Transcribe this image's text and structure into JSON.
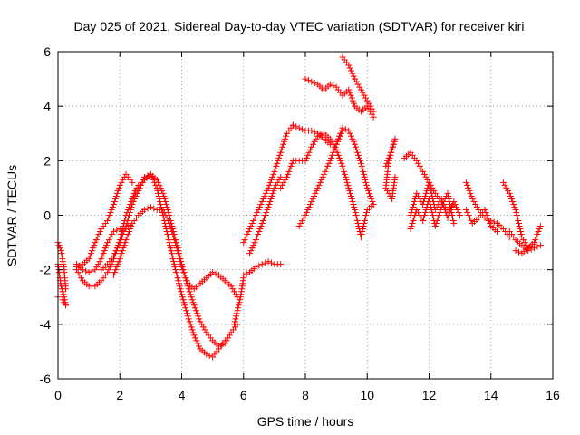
{
  "chart_data": {
    "type": "scatter",
    "title": "Day 025 of 2021, Sidereal Day-to-day VTEC variation (SDTVAR) for receiver kiri",
    "xlabel": "GPS time / hours",
    "ylabel": "SDTVAR / TECUs",
    "xlim": [
      0,
      16
    ],
    "ylim": [
      -6,
      6
    ],
    "xticks": [
      "0",
      "2",
      "4",
      "6",
      "8",
      "10",
      "12",
      "14",
      "16"
    ],
    "yticks": [
      "-6",
      "-4",
      "-2",
      "0",
      "2",
      "4",
      "6"
    ],
    "grid": true,
    "marker": "+",
    "marker_color": "#ff0000",
    "series": [
      {
        "x": [
          0.0,
          0.1,
          0.2,
          0.25
        ],
        "y": [
          -1.0,
          -1.3,
          -2.0,
          -2.7
        ]
      },
      {
        "x": [
          0.0,
          0.1,
          0.2,
          0.25
        ],
        "y": [
          -1.8,
          -2.6,
          -3.0,
          -3.3
        ]
      },
      {
        "x": [
          0.0,
          0.15,
          0.25
        ],
        "y": [
          -3.0,
          -3.1,
          -3.3
        ]
      },
      {
        "x": [
          0.6,
          0.8,
          1.0,
          1.2,
          1.4,
          1.6,
          1.8,
          2.0,
          2.2,
          2.4,
          2.6,
          2.8,
          3.0,
          3.2,
          3.4,
          3.6,
          3.8,
          4.0,
          4.2,
          4.4,
          4.6,
          4.8,
          5.0,
          5.2,
          5.4
        ],
        "y": [
          -2.0,
          -2.4,
          -2.6,
          -2.6,
          -2.4,
          -2.1,
          -1.6,
          -0.9,
          0.0,
          0.6,
          1.0,
          1.3,
          1.5,
          1.0,
          0.0,
          -1.0,
          -2.0,
          -2.9,
          -3.7,
          -4.4,
          -4.9,
          -5.1,
          -5.2,
          -4.9,
          -4.6
        ]
      },
      {
        "x": [
          0.6,
          0.8,
          1.0,
          1.2,
          1.4,
          1.6,
          1.8,
          2.0,
          2.2,
          2.4,
          2.6,
          2.8,
          3.0,
          3.2,
          3.4,
          3.6,
          3.8,
          4.0,
          4.2,
          4.4,
          4.6,
          4.8,
          5.0,
          5.2,
          5.4,
          5.6,
          5.8
        ],
        "y": [
          -1.8,
          -2.0,
          -2.1,
          -2.0,
          -1.6,
          -1.0,
          -0.6,
          -0.5,
          -0.5,
          -0.3,
          0.0,
          0.2,
          0.3,
          0.2,
          0.2,
          -0.3,
          -1.0,
          -1.9,
          -2.5,
          -2.7,
          -2.5,
          -2.3,
          -2.1,
          -2.2,
          -2.4,
          -2.6,
          -3.0
        ]
      },
      {
        "x": [
          0.6,
          0.8,
          1.0,
          1.2,
          1.4,
          1.6,
          1.8,
          2.0,
          2.2,
          2.4
        ],
        "y": [
          -1.9,
          -1.8,
          -1.6,
          -1.0,
          -0.5,
          -0.2,
          0.4,
          1.1,
          1.5,
          1.2
        ]
      },
      {
        "x": [
          1.4,
          1.6,
          1.8,
          2.0,
          2.2,
          2.4,
          2.6,
          2.8,
          3.0,
          3.2,
          3.4,
          3.6,
          3.8,
          4.0,
          4.2,
          4.4,
          4.6,
          4.8,
          5.0,
          5.2,
          5.4,
          5.6,
          5.8
        ],
        "y": [
          -2.0,
          -1.8,
          -1.5,
          -1.0,
          -0.4,
          0.4,
          0.9,
          1.4,
          1.5,
          1.3,
          0.8,
          0.0,
          -0.9,
          -1.8,
          -2.6,
          -3.3,
          -3.9,
          -4.3,
          -4.6,
          -4.8,
          -4.7,
          -4.3,
          -4.0
        ]
      },
      {
        "x": [
          1.8,
          2.0,
          2.2,
          2.4
        ],
        "y": [
          -2.2,
          -1.6,
          -0.9,
          -0.3
        ]
      },
      {
        "x": [
          2.4,
          2.5,
          2.6
        ],
        "y": [
          0.6,
          0.9,
          1.1
        ]
      },
      {
        "x": [
          5.7,
          5.8,
          5.9,
          6.0
        ],
        "y": [
          -4.0,
          -3.5,
          -3.0,
          -2.3
        ]
      },
      {
        "x": [
          6.0,
          6.2,
          6.4,
          6.6,
          6.8,
          7.0,
          7.2,
          7.4,
          7.6
        ],
        "y": [
          -1.0,
          -0.5,
          0.0,
          0.5,
          1.0,
          1.6,
          2.3,
          3.0,
          3.3
        ]
      },
      {
        "x": [
          6.0,
          6.2,
          6.4,
          6.6,
          6.8,
          7.0,
          7.2
        ],
        "y": [
          -2.2,
          -2.1,
          -1.9,
          -1.8,
          -1.7,
          -1.8,
          -1.8
        ]
      },
      {
        "x": [
          6.2,
          6.4,
          6.6,
          6.8,
          7.0,
          7.2
        ],
        "y": [
          -1.4,
          -0.9,
          -0.3,
          0.3,
          1.0,
          1.4
        ]
      },
      {
        "x": [
          7.2,
          7.4,
          7.6,
          7.8,
          8.0,
          8.2,
          8.4,
          8.6,
          8.8,
          9.0,
          9.2,
          9.4,
          9.6,
          9.8,
          10.0,
          10.2
        ],
        "y": [
          1.0,
          1.4,
          2.0,
          2.0,
          2.0,
          2.5,
          2.9,
          3.0,
          2.8,
          2.4,
          1.8,
          1.0,
          0.2,
          -0.8,
          0.2,
          0.4
        ]
      },
      {
        "x": [
          7.6,
          7.8,
          8.0,
          8.2,
          8.4,
          8.6,
          8.8,
          9.0,
          9.2,
          9.4,
          9.6,
          9.8,
          10.0,
          10.2
        ],
        "y": [
          3.3,
          3.2,
          3.1,
          3.1,
          3.0,
          2.8,
          2.6,
          2.6,
          3.2,
          3.1,
          2.6,
          1.9,
          1.0,
          0.4
        ]
      },
      {
        "x": [
          7.8,
          8.0,
          8.2,
          8.4,
          8.6,
          8.8,
          9.0,
          9.2
        ],
        "y": [
          -0.4,
          0.0,
          0.5,
          1.0,
          1.5,
          2.0,
          2.6,
          3.1
        ]
      },
      {
        "x": [
          8.0,
          8.2,
          8.4,
          8.6,
          8.8,
          9.0,
          9.2,
          9.4,
          9.6,
          9.8,
          10.0,
          10.2
        ],
        "y": [
          5.0,
          4.9,
          4.8,
          4.6,
          4.8,
          4.7,
          4.4,
          4.6,
          4.0,
          3.8,
          4.0,
          3.6
        ]
      },
      {
        "x": [
          9.2,
          9.4,
          9.6,
          9.8,
          10.0,
          10.2
        ],
        "y": [
          5.8,
          5.5,
          5.0,
          4.6,
          4.2,
          3.8
        ]
      },
      {
        "x": [
          10.6,
          10.8,
          10.9,
          10.7,
          10.6,
          10.8,
          10.9
        ],
        "y": [
          1.8,
          2.4,
          2.8,
          2.0,
          1.0,
          0.6,
          1.4
        ]
      },
      {
        "x": [
          11.2,
          11.4,
          11.6,
          11.8,
          12.0,
          12.2,
          12.4,
          12.6,
          12.8
        ],
        "y": [
          2.1,
          2.3,
          2.0,
          1.6,
          1.2,
          0.8,
          0.5,
          0.2,
          0.4
        ]
      },
      {
        "x": [
          11.4,
          11.6,
          11.8,
          12.0,
          12.2,
          12.4,
          12.6,
          12.8,
          13.0
        ],
        "y": [
          0.0,
          0.8,
          0.4,
          1.2,
          0.2,
          0.6,
          -0.1,
          0.5,
          0.0
        ]
      },
      {
        "x": [
          11.4,
          11.6,
          11.8,
          12.0,
          12.2,
          12.4,
          12.6,
          12.8
        ],
        "y": [
          -0.5,
          0.2,
          -0.2,
          0.6,
          -0.4,
          0.3,
          0.8,
          -0.3
        ]
      },
      {
        "x": [
          13.2,
          13.4,
          13.6,
          13.8,
          14.0,
          14.2,
          14.4,
          14.6
        ],
        "y": [
          1.2,
          0.6,
          0.2,
          -0.1,
          -0.2,
          -0.3,
          -0.5,
          -0.8
        ]
      },
      {
        "x": [
          13.2,
          13.4,
          13.6,
          13.8,
          14.0,
          14.2
        ],
        "y": [
          0.2,
          -0.3,
          -0.1,
          0.2,
          -0.4,
          -0.6
        ]
      },
      {
        "x": [
          14.4,
          14.6,
          14.8,
          15.0,
          15.2,
          15.4,
          15.6
        ],
        "y": [
          1.2,
          0.8,
          0.2,
          -0.8,
          -1.2,
          -1.0,
          -0.4
        ]
      },
      {
        "x": [
          14.6,
          14.8,
          15.0,
          15.2,
          15.4,
          15.6
        ],
        "y": [
          -0.6,
          -0.9,
          -1.1,
          -1.3,
          -1.2,
          -1.1
        ]
      },
      {
        "x": [
          14.8,
          15.0,
          15.2,
          15.4
        ],
        "y": [
          -1.3,
          -1.4,
          -1.2,
          -1.0
        ]
      }
    ]
  }
}
